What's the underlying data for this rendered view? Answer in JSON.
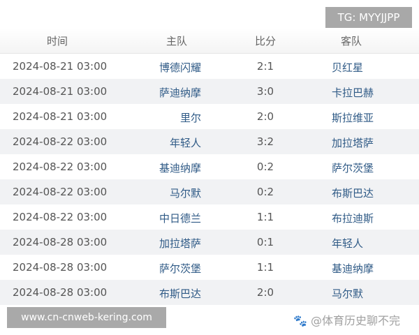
{
  "watermark_tg": "TG: MYYJJPP",
  "headers": {
    "time": "时间",
    "home": "主队",
    "score": "比分",
    "away": "客队"
  },
  "rows": [
    {
      "time": "2024-08-21 03:00",
      "home": "博德闪耀",
      "score": "2:1",
      "away": "贝红星"
    },
    {
      "time": "2024-08-21 03:00",
      "home": "萨迪纳摩",
      "score": "3:0",
      "away": "卡拉巴赫"
    },
    {
      "time": "2024-08-21 03:00",
      "home": "里尔",
      "score": "2:0",
      "away": "斯拉维亚"
    },
    {
      "time": "2024-08-22 03:00",
      "home": "年轻人",
      "score": "3:2",
      "away": "加拉塔萨"
    },
    {
      "time": "2024-08-22 03:00",
      "home": "基迪纳摩",
      "score": "0:2",
      "away": "萨尔茨堡"
    },
    {
      "time": "2024-08-22 03:00",
      "home": "马尔默",
      "score": "0:2",
      "away": "布斯巴达"
    },
    {
      "time": "2024-08-22 03:00",
      "home": "中日德兰",
      "score": "1:1",
      "away": "布拉迪斯"
    },
    {
      "time": "2024-08-28 03:00",
      "home": "加拉塔萨",
      "score": "0:1",
      "away": "年轻人"
    },
    {
      "time": "2024-08-28 03:00",
      "home": "萨尔茨堡",
      "score": "1:1",
      "away": "基迪纳摩"
    },
    {
      "time": "2024-08-28 03:00",
      "home": "布斯巴达",
      "score": "2:0",
      "away": "马尔默"
    }
  ],
  "watermark_source": "@体育历史聊不完",
  "site_url": "www.cn-cnweb-kering.com"
}
